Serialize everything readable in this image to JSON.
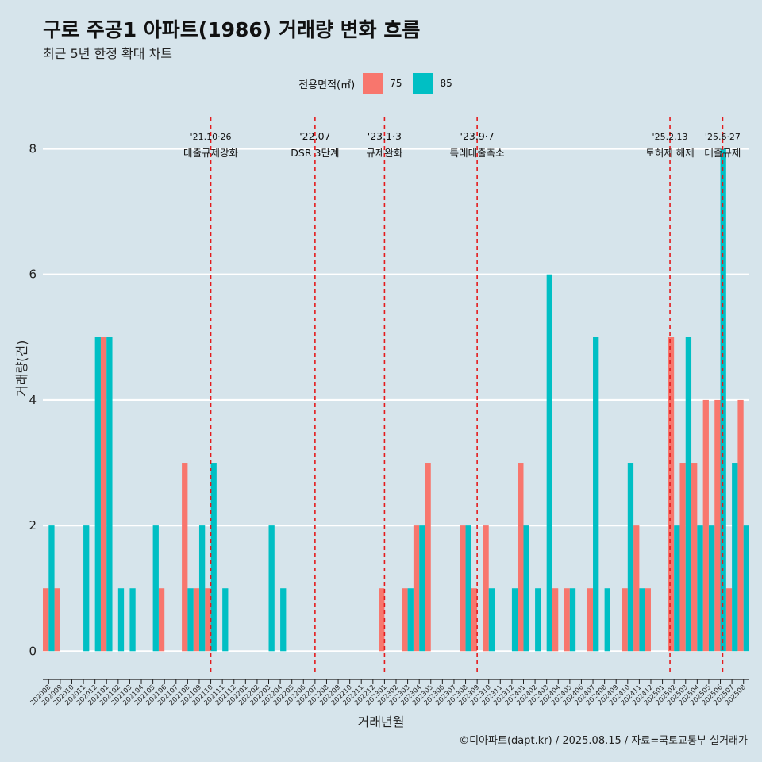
{
  "header": {
    "title": "구로 주공1 아파트(1986) 거래량 변화 흐름",
    "subtitle": "최근 5년 한정 확대 차트"
  },
  "legend": {
    "title": "전용면적(㎡)",
    "items": [
      {
        "label": "75",
        "color": "#F8766D"
      },
      {
        "label": "85",
        "color": "#00BFC4"
      }
    ]
  },
  "axes": {
    "xlabel": "거래년월",
    "ylabel": "거래량(건)"
  },
  "caption": "©디아파트(dapt.kr) / 2025.08.15 / 자료=국토교통부 실거래가",
  "chart_data": {
    "type": "bar",
    "categories": [
      "202008",
      "202009",
      "202010",
      "202011",
      "202012",
      "202101",
      "202102",
      "202103",
      "202104",
      "202105",
      "202106",
      "202107",
      "202108",
      "202109",
      "202110",
      "202111",
      "202112",
      "202201",
      "202202",
      "202203",
      "202204",
      "202205",
      "202206",
      "202207",
      "202208",
      "202209",
      "202210",
      "202211",
      "202212",
      "202301",
      "202302",
      "202303",
      "202304",
      "202305",
      "202306",
      "202307",
      "202308",
      "202309",
      "202310",
      "202311",
      "202312",
      "202401",
      "202402",
      "202403",
      "202404",
      "202405",
      "202406",
      "202407",
      "202408",
      "202409",
      "202410",
      "202411",
      "202412",
      "202501",
      "202502",
      "202503",
      "202504",
      "202505",
      "202506",
      "202507",
      "202508"
    ],
    "series": [
      {
        "name": "75",
        "color": "#F8766D",
        "values": [
          1,
          1,
          0,
          0,
          0,
          5,
          0,
          0,
          0,
          0,
          1,
          0,
          3,
          1,
          1,
          0,
          0,
          0,
          0,
          0,
          0,
          0,
          0,
          0,
          0,
          0,
          0,
          0,
          0,
          1,
          0,
          1,
          2,
          3,
          0,
          0,
          2,
          1,
          2,
          0,
          0,
          3,
          0,
          0,
          1,
          1,
          0,
          1,
          0,
          0,
          1,
          2,
          1,
          0,
          5,
          3,
          3,
          4,
          4,
          1,
          4
        ]
      },
      {
        "name": "85",
        "color": "#00BFC4",
        "values": [
          2,
          0,
          0,
          2,
          5,
          5,
          1,
          1,
          0,
          2,
          0,
          0,
          1,
          2,
          3,
          1,
          0,
          0,
          0,
          2,
          1,
          0,
          0,
          0,
          0,
          0,
          0,
          0,
          0,
          0,
          0,
          1,
          2,
          0,
          0,
          0,
          2,
          0,
          1,
          0,
          1,
          2,
          1,
          6,
          0,
          1,
          0,
          5,
          1,
          0,
          3,
          1,
          0,
          0,
          2,
          5,
          2,
          2,
          8,
          3,
          2
        ]
      }
    ],
    "ylim": [
      -0.35,
      8.5
    ],
    "yticks": [
      0,
      2,
      4,
      6,
      8
    ],
    "events": [
      {
        "date": "'21.10·26",
        "label": "대출규제강화",
        "index": 14,
        "offset": 0
      },
      {
        "date": "'22.07",
        "label": "DSR 3단계",
        "index": 23,
        "offset": 0
      },
      {
        "date": "'23.1·3",
        "label": "규제완화",
        "index": 29,
        "offset": 0
      },
      {
        "date": "'23.9·7",
        "label": "특례대출축소",
        "index": 37,
        "offset": 0
      },
      {
        "date": "'25.2.13",
        "label": "토허제 해제",
        "index": 54,
        "offset": -0.35
      },
      {
        "date": "'25.6·27",
        "label": "대출규제",
        "index": 58,
        "offset": 0.2
      }
    ],
    "xlabel": "거래년월",
    "ylabel": "거래량(건)"
  }
}
